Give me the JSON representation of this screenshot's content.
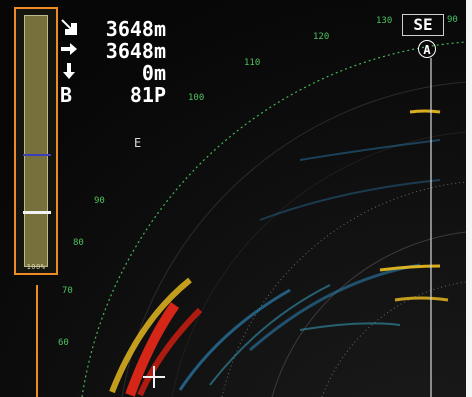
{
  "readouts": [
    {
      "icon": "slant-down-right-arrow-icon",
      "value": "3648m"
    },
    {
      "icon": "right-arrow-icon",
      "value": "3648m"
    },
    {
      "icon": "down-arrow-icon",
      "value": "0m"
    },
    {
      "label": "B",
      "value": "81P"
    }
  ],
  "gauge": {
    "footer": "100%",
    "level_fraction": 0.78
  },
  "scale_label": "E",
  "direction_box": "SE",
  "top_right_code": "90",
  "bearing_labels": [
    "130",
    "120",
    "110",
    "100",
    "90",
    "80",
    "70",
    "60"
  ],
  "marker_letter": "A",
  "colors": {
    "callout": "#f08a24",
    "scale_green": "#4bc35d",
    "echo_hot": "#e02818",
    "echo_warm": "#f0c020",
    "echo_cool": "#30a0d8"
  }
}
